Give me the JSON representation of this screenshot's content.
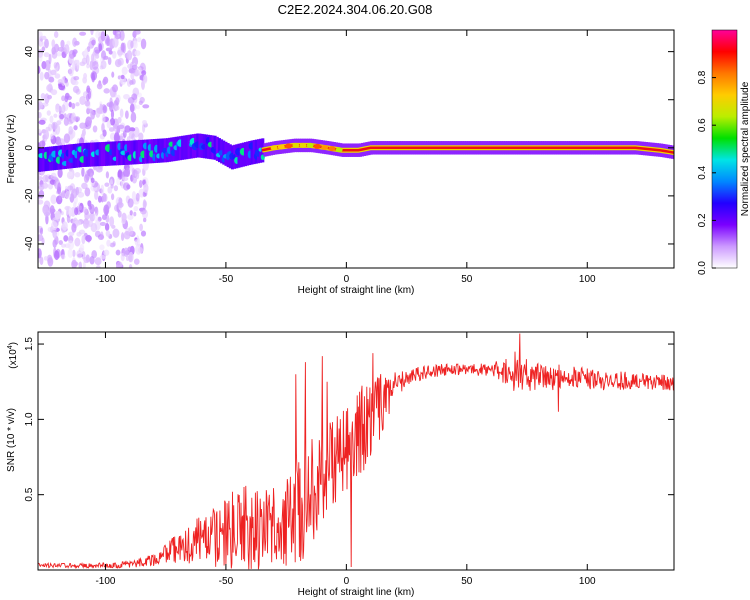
{
  "title": "C2E2.2024.304.06.20.G08",
  "colors": {
    "snr_line": "#ee2222",
    "ridge": "#ee1111",
    "colorbar_stops": [
      "#ffffff",
      "#cc99ff",
      "#7a00ff",
      "#2200ff",
      "#0088ff",
      "#00e5e5",
      "#00e000",
      "#bbee00",
      "#ffcc00",
      "#ff7700",
      "#ff0000",
      "#ff0099"
    ]
  },
  "chart_data": [
    {
      "type": "heatmap",
      "xlabel": "Height of straight line (km)",
      "ylabel": "Frequency (Hz)",
      "xlim": [
        -128,
        136
      ],
      "ylim": [
        -50,
        49
      ],
      "x_ticks": [
        -100,
        -50,
        0,
        50,
        100
      ],
      "x_tick_labels": [
        "-100",
        "-50",
        "0",
        "50",
        "100"
      ],
      "y_ticks": [
        -40,
        -20,
        0,
        20,
        40
      ],
      "y_tick_labels": [
        "-40",
        "-20",
        "0",
        "20",
        "40"
      ],
      "colorbar": {
        "label": "Normalized spectral amplitude",
        "range": [
          0,
          1
        ],
        "ticks": [
          0.0,
          0.2,
          0.4,
          0.6,
          0.8
        ],
        "tick_labels": [
          "0.0",
          "0.2",
          "0.4",
          "0.6",
          "0.8"
        ]
      },
      "ridge_frequency": {
        "x": [
          -128,
          -110,
          -90,
          -75,
          -62,
          -55,
          -48,
          -40,
          -30,
          -22,
          -15,
          -8,
          -2,
          5,
          10,
          20,
          40,
          60,
          80,
          100,
          120,
          130,
          136
        ],
        "y": [
          -5,
          -3,
          -2,
          -1,
          1,
          0,
          -4,
          -2,
          0,
          1,
          1,
          0,
          -1,
          -1,
          0,
          0,
          0,
          0,
          0,
          0,
          0,
          -1,
          -2
        ]
      }
    },
    {
      "type": "line",
      "xlabel": "Height of straight line (km)",
      "ylabel": "SNR (10 * v/v)",
      "y_scale_label": "(x10",
      "y_scale_exponent": "4",
      "y_scale_suffix": ")",
      "xlim": [
        -128,
        136
      ],
      "ylim": [
        0,
        1.58
      ],
      "x_ticks": [
        -100,
        -50,
        0,
        50,
        100
      ],
      "x_tick_labels": [
        "-100",
        "-50",
        "0",
        "50",
        "100"
      ],
      "y_ticks": [
        0.5,
        1.0,
        1.5
      ],
      "y_tick_labels": [
        "0.5",
        "1.0",
        "1.5"
      ],
      "envelope": {
        "x": [
          -128,
          -110,
          -95,
          -85,
          -78,
          -70,
          -60,
          -50,
          -40,
          -30,
          -25,
          -20,
          -15,
          -10,
          -5,
          0,
          5,
          10,
          15,
          20,
          25,
          30,
          40,
          50,
          60,
          70,
          80,
          90,
          100,
          110,
          120,
          136
        ],
        "mean": [
          0.03,
          0.03,
          0.03,
          0.05,
          0.08,
          0.15,
          0.2,
          0.25,
          0.28,
          0.3,
          0.32,
          0.45,
          0.5,
          0.6,
          0.72,
          0.78,
          0.9,
          1.0,
          1.12,
          1.22,
          1.27,
          1.3,
          1.33,
          1.33,
          1.33,
          1.3,
          1.28,
          1.28,
          1.27,
          1.26,
          1.25,
          1.24
        ],
        "amp": [
          0.015,
          0.015,
          0.02,
          0.03,
          0.05,
          0.1,
          0.18,
          0.25,
          0.3,
          0.25,
          0.3,
          0.45,
          0.4,
          0.35,
          0.4,
          0.3,
          0.3,
          0.3,
          0.2,
          0.1,
          0.05,
          0.05,
          0.04,
          0.04,
          0.05,
          0.12,
          0.1,
          0.08,
          0.07,
          0.07,
          0.06,
          0.05
        ]
      },
      "peaks": [
        {
          "x": -21,
          "y": 1.3
        },
        {
          "x": -17,
          "y": 1.38
        },
        {
          "x": -10,
          "y": 1.42
        },
        {
          "x": -8,
          "y": 1.25
        },
        {
          "x": 11,
          "y": 1.44
        },
        {
          "x": 2,
          "y": 0.02
        },
        {
          "x": 72,
          "y": 1.57
        },
        {
          "x": 70,
          "y": 1.45
        },
        {
          "x": 88,
          "y": 1.05
        }
      ]
    }
  ]
}
